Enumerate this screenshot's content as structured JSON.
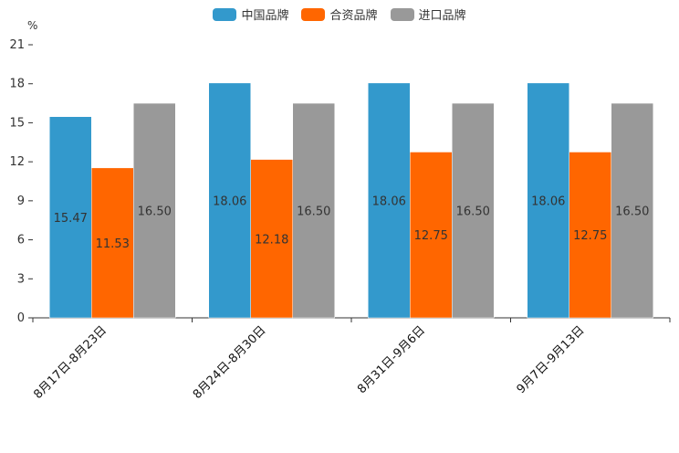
{
  "chart_data": {
    "type": "bar",
    "title": "",
    "unit_label": "%",
    "categories": [
      "8月17日-8月23日",
      "8月24日-8月30日",
      "8月31日-9月6日",
      "9月7日-9月13日"
    ],
    "series": [
      {
        "name": "中国品牌",
        "color": "#3399cc",
        "values": [
          15.47,
          18.06,
          18.06,
          18.06
        ]
      },
      {
        "name": "合资品牌",
        "color": "#ff6600",
        "values": [
          11.53,
          12.18,
          12.75,
          12.75
        ]
      },
      {
        "name": "进口品牌",
        "color": "#999999",
        "values": [
          16.5,
          16.5,
          16.5,
          16.5
        ]
      }
    ],
    "yticks": [
      0,
      3,
      6,
      9,
      12,
      15,
      18,
      21
    ],
    "ylim": [
      0,
      21
    ],
    "legend_position": "top-center",
    "grid": false
  }
}
